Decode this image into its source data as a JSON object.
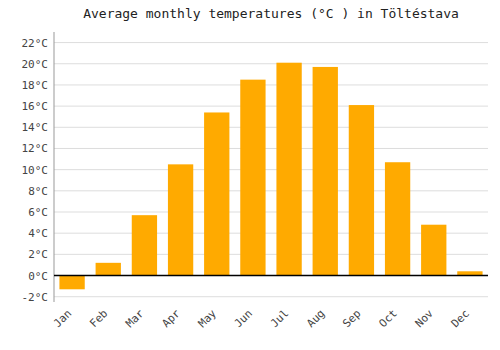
{
  "chart_data": {
    "type": "bar",
    "title": "Average monthly temperatures (°C ) in Töltéstava",
    "categories": [
      "Jan",
      "Feb",
      "Mar",
      "Apr",
      "May",
      "Jun",
      "Jul",
      "Aug",
      "Sep",
      "Oct",
      "Nov",
      "Dec"
    ],
    "values": [
      -1.3,
      1.2,
      5.7,
      10.5,
      15.4,
      18.5,
      20.1,
      19.7,
      16.1,
      10.7,
      4.8,
      0.4
    ],
    "color": "#FFAA00",
    "ylim": [
      -2.5,
      23
    ],
    "yticks": [
      {
        "value": -2,
        "label": "-2°C"
      },
      {
        "value": 0,
        "label": "0°C"
      },
      {
        "value": 2,
        "label": "2°C"
      },
      {
        "value": 4,
        "label": "4°C"
      },
      {
        "value": 6,
        "label": "6°C"
      },
      {
        "value": 8,
        "label": "8°C"
      },
      {
        "value": 10,
        "label": "10°C"
      },
      {
        "value": 12,
        "label": "12°C"
      },
      {
        "value": 14,
        "label": "14°C"
      },
      {
        "value": 16,
        "label": "16°C"
      },
      {
        "value": 18,
        "label": "18°C"
      },
      {
        "value": 20,
        "label": "20°C"
      },
      {
        "value": 22,
        "label": "22°C"
      }
    ],
    "grid": true
  }
}
